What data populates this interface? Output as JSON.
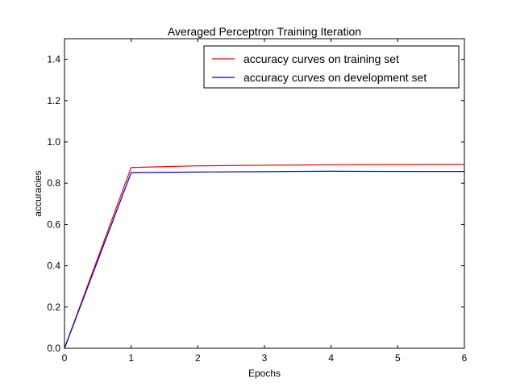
{
  "chart_data": {
    "type": "line",
    "title": "Averaged Perceptron Training Iteration",
    "xlabel": "Epochs",
    "ylabel": "accuracies",
    "x": [
      0,
      1,
      2,
      3,
      4,
      5,
      6
    ],
    "xlim": [
      0,
      6
    ],
    "ylim": [
      0.0,
      1.5
    ],
    "xticks": [
      "0",
      "1",
      "2",
      "3",
      "4",
      "5",
      "6"
    ],
    "yticks": [
      "0.0",
      "0.2",
      "0.4",
      "0.6",
      "0.8",
      "1.0",
      "1.2",
      "1.4"
    ],
    "grid": false,
    "legend_position": "top-right",
    "series": [
      {
        "name": "accuracy curves on training set",
        "color": "#ff0000",
        "values": [
          0.0,
          0.876,
          0.884,
          0.887,
          0.889,
          0.89,
          0.891
        ]
      },
      {
        "name": "accuracy curves on development set",
        "color": "#0000cc",
        "values": [
          0.0,
          0.851,
          0.854,
          0.856,
          0.858,
          0.857,
          0.857
        ]
      }
    ]
  }
}
